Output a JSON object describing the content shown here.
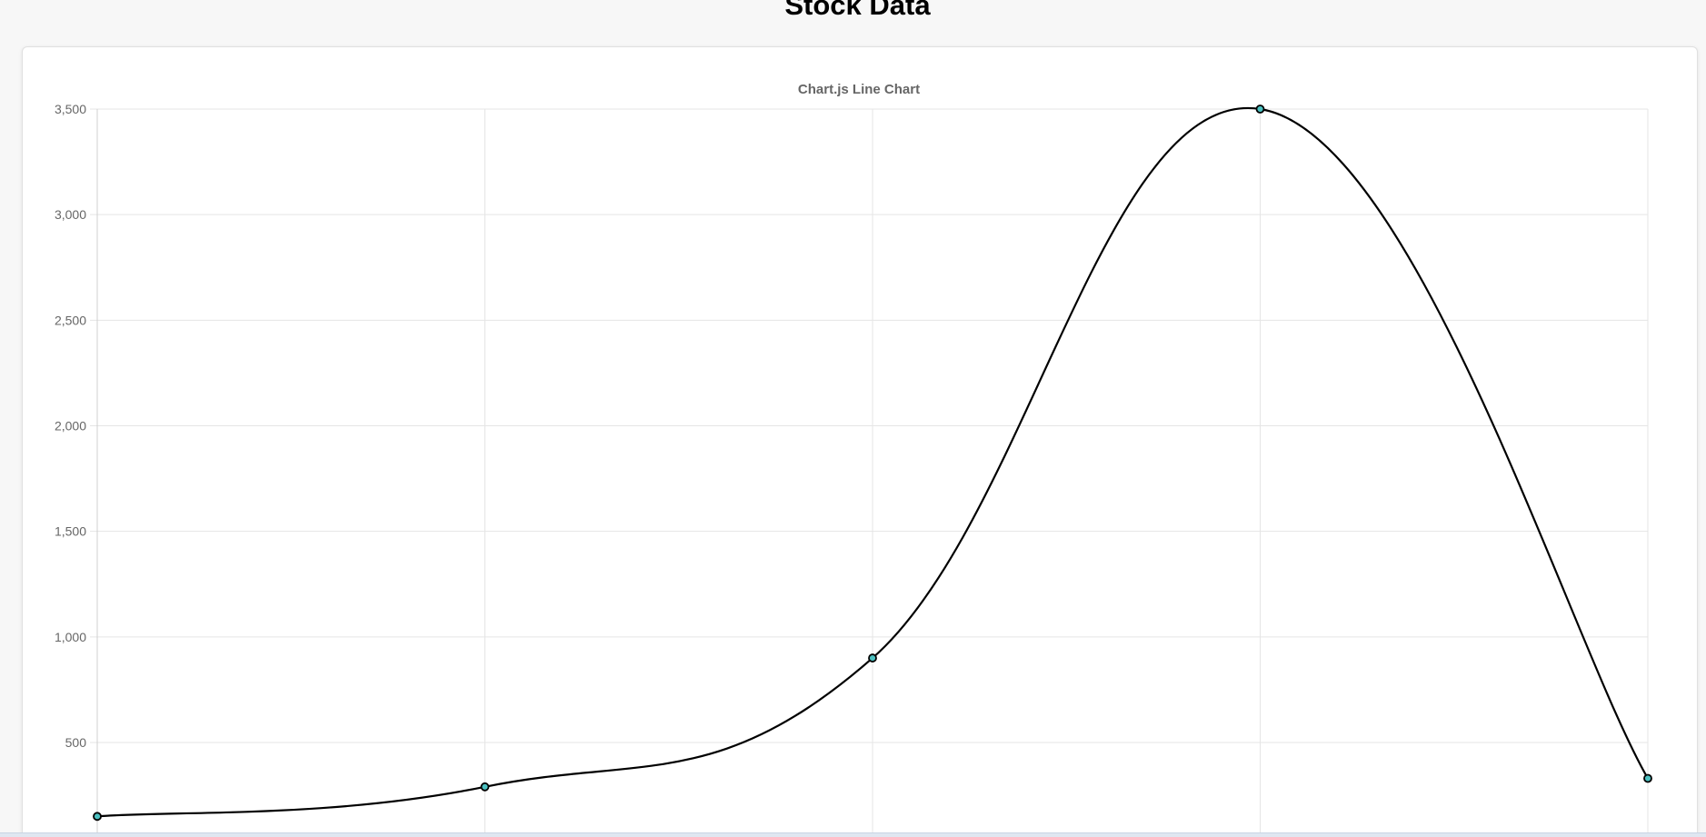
{
  "page": {
    "title": "Stock Data"
  },
  "chart_data": {
    "type": "line",
    "title": "Chart.js Line Chart",
    "xlabel": "",
    "ylabel": "",
    "x_tick_labels": [
      "",
      "",
      "",
      "",
      ""
    ],
    "y_ticks": [
      500,
      1000,
      1500,
      2000,
      2500,
      3000,
      3500
    ],
    "y_tick_labels": [
      "500",
      "1,000",
      "1,500",
      "2,000",
      "2,500",
      "3,000",
      "3,500"
    ],
    "ylim": [
      0,
      3500
    ],
    "grid": true,
    "legend": "none",
    "series": [
      {
        "values": [
          150,
          290,
          900,
          3500,
          330
        ],
        "line_color": "#000000",
        "point_fill": "#4bc0c0",
        "point_stroke": "#000000"
      }
    ]
  }
}
